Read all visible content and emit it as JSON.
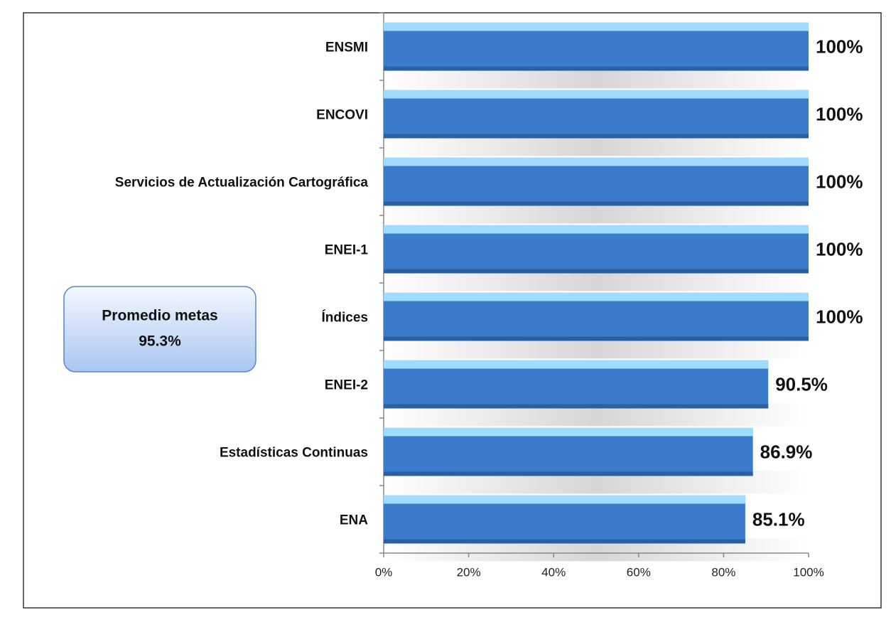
{
  "chart_data": {
    "type": "bar",
    "orientation": "horizontal",
    "categories": [
      "ENSMI",
      "ENCOVI",
      "Servicios de Actualización Cartográfica",
      "ENEI-1",
      "Índices",
      "ENEI-2",
      "Estadísticas Continuas",
      "ENA"
    ],
    "values": [
      100,
      100,
      100,
      100,
      100,
      90.5,
      86.9,
      85.1
    ],
    "value_labels": [
      "100%",
      "100%",
      "100%",
      "100%",
      "100%",
      "90.5%",
      "86.9%",
      "85.1%"
    ],
    "color": "#3b7bcb",
    "xlim": [
      0,
      100
    ],
    "xticks": [
      {
        "value": 0,
        "label": "0%"
      },
      {
        "value": 20,
        "label": "20%"
      },
      {
        "value": 40,
        "label": "40%"
      },
      {
        "value": 60,
        "label": "60%"
      },
      {
        "value": 80,
        "label": "80%"
      },
      {
        "value": 100,
        "label": "100%"
      }
    ],
    "annotation": [
      "Promedio metas",
      "95.3%"
    ]
  }
}
